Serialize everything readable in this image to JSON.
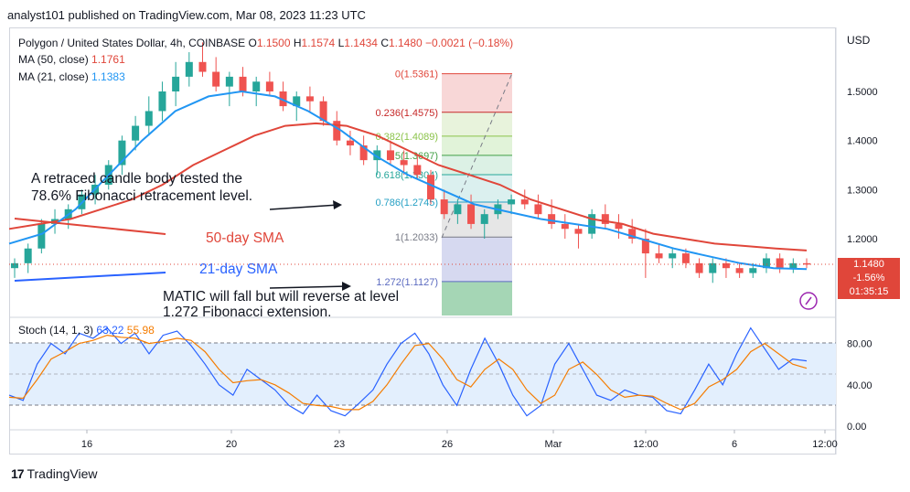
{
  "header": {
    "publisher": "analyst101 published on TradingView.com, Mar 08, 2023 11:23 UTC"
  },
  "legend": {
    "symbol": "Polygon / United States Dollar, 4h, COINBASE",
    "o_label": "O",
    "o_val": "1.1500",
    "h_label": "H",
    "h_val": "1.1574",
    "l_label": "L",
    "l_val": "1.1434",
    "c_label": "C",
    "c_val": "1.1480",
    "change": "−0.0021 (−0.18%)",
    "ma50_label": "MA (50, close)",
    "ma50_val": "1.1761",
    "ma21_label": "MA (21, close)",
    "ma21_val": "1.1383"
  },
  "price_axis": {
    "currency": "USD",
    "ticks": [
      "1.5000",
      "1.4000",
      "1.3000",
      "1.2000"
    ],
    "tick_values": [
      1.5,
      1.4,
      1.3,
      1.2
    ],
    "last_price": "1.1480",
    "last_change": "-1.56%",
    "countdown": "01:35:15"
  },
  "stoch": {
    "label": "Stoch (14, 1, 3)",
    "k_val": "63.22",
    "d_val": "55.98",
    "ticks": [
      "80.00",
      "40.00",
      "0.00"
    ],
    "tick_values": [
      80,
      40,
      0
    ]
  },
  "time_axis": {
    "labels": [
      "16",
      "20",
      "23",
      "26",
      "Mar",
      "12:00",
      "6",
      "12:00"
    ]
  },
  "fib": {
    "levels": [
      {
        "label": "0(1.5361)",
        "value": 1.5361,
        "color": "#e0463a"
      },
      {
        "label": "0.236(1.4575)",
        "value": 1.4575,
        "color": "#c62828"
      },
      {
        "label": "0.382(1.4089)",
        "value": 1.4089,
        "color": "#8bc34a"
      },
      {
        "label": "0.5(1.3697)",
        "value": 1.3697,
        "color": "#43a047"
      },
      {
        "label": "0.618(1.3304)",
        "value": 1.3304,
        "color": "#26a69a"
      },
      {
        "label": "0.786(1.2745)",
        "value": 1.2745,
        "color": "#26a0c4"
      },
      {
        "label": "1(1.2033)",
        "value": 1.2033,
        "color": "#787b86"
      },
      {
        "label": "1.272(1.1127)",
        "value": 1.1127,
        "color": "#5c6bc0"
      }
    ],
    "extension_bottom_value": 1.0
  },
  "annotations": {
    "retrace_line1": "A retraced candle body tested the",
    "retrace_line2": "78.6% Fibonacci retracement level.",
    "sma50": "50-day SMA",
    "sma21": "21-day SMA",
    "matic_line1": "MATIC  will fall but will reverse at level",
    "matic_line2": "1.272 Fibonacci extension."
  },
  "colors": {
    "up": "#26a69a",
    "down": "#ef5350",
    "ma50": "#e0463a",
    "ma21": "#2196f3",
    "stoch_k": "#2962ff",
    "stoch_d": "#f57c00",
    "stoch_band": "#e3effd"
  },
  "footer": {
    "brand": "TradingView"
  },
  "chart_data": {
    "type": "candlestick",
    "title": "Polygon / United States Dollar, 4h, COINBASE",
    "ylim": [
      1.06,
      1.62
    ],
    "candles": [
      [
        1.14,
        1.16,
        1.12,
        1.15
      ],
      [
        1.15,
        1.19,
        1.13,
        1.18
      ],
      [
        1.18,
        1.24,
        1.17,
        1.23
      ],
      [
        1.23,
        1.26,
        1.21,
        1.24
      ],
      [
        1.24,
        1.27,
        1.22,
        1.26
      ],
      [
        1.26,
        1.3,
        1.25,
        1.29
      ],
      [
        1.29,
        1.33,
        1.27,
        1.31
      ],
      [
        1.31,
        1.36,
        1.3,
        1.35
      ],
      [
        1.35,
        1.41,
        1.33,
        1.4
      ],
      [
        1.4,
        1.45,
        1.38,
        1.43
      ],
      [
        1.43,
        1.49,
        1.41,
        1.46
      ],
      [
        1.46,
        1.52,
        1.44,
        1.5
      ],
      [
        1.5,
        1.56,
        1.47,
        1.53
      ],
      [
        1.53,
        1.58,
        1.51,
        1.56
      ],
      [
        1.56,
        1.6,
        1.53,
        1.54
      ],
      [
        1.54,
        1.57,
        1.5,
        1.51
      ],
      [
        1.51,
        1.54,
        1.47,
        1.53
      ],
      [
        1.53,
        1.55,
        1.49,
        1.5
      ],
      [
        1.5,
        1.53,
        1.47,
        1.52
      ],
      [
        1.52,
        1.54,
        1.49,
        1.5
      ],
      [
        1.5,
        1.52,
        1.46,
        1.47
      ],
      [
        1.47,
        1.5,
        1.44,
        1.49
      ],
      [
        1.49,
        1.51,
        1.46,
        1.48
      ],
      [
        1.48,
        1.49,
        1.43,
        1.44
      ],
      [
        1.44,
        1.46,
        1.39,
        1.4
      ],
      [
        1.4,
        1.42,
        1.37,
        1.39
      ],
      [
        1.39,
        1.41,
        1.35,
        1.36
      ],
      [
        1.36,
        1.39,
        1.33,
        1.38
      ],
      [
        1.38,
        1.4,
        1.35,
        1.36
      ],
      [
        1.36,
        1.38,
        1.33,
        1.35
      ],
      [
        1.35,
        1.37,
        1.32,
        1.33
      ],
      [
        1.33,
        1.34,
        1.27,
        1.28
      ],
      [
        1.28,
        1.3,
        1.24,
        1.25
      ],
      [
        1.25,
        1.28,
        1.23,
        1.27
      ],
      [
        1.27,
        1.29,
        1.22,
        1.23
      ],
      [
        1.23,
        1.26,
        1.2,
        1.25
      ],
      [
        1.25,
        1.28,
        1.24,
        1.27
      ],
      [
        1.27,
        1.29,
        1.25,
        1.28
      ],
      [
        1.28,
        1.3,
        1.26,
        1.27
      ],
      [
        1.27,
        1.29,
        1.24,
        1.25
      ],
      [
        1.25,
        1.28,
        1.22,
        1.23
      ],
      [
        1.23,
        1.25,
        1.2,
        1.22
      ],
      [
        1.22,
        1.23,
        1.18,
        1.21
      ],
      [
        1.21,
        1.26,
        1.2,
        1.25
      ],
      [
        1.25,
        1.27,
        1.22,
        1.23
      ],
      [
        1.23,
        1.25,
        1.2,
        1.22
      ],
      [
        1.22,
        1.24,
        1.19,
        1.2
      ],
      [
        1.2,
        1.22,
        1.12,
        1.17
      ],
      [
        1.17,
        1.19,
        1.15,
        1.16
      ],
      [
        1.16,
        1.18,
        1.14,
        1.17
      ],
      [
        1.17,
        1.18,
        1.14,
        1.15
      ],
      [
        1.15,
        1.16,
        1.12,
        1.13
      ],
      [
        1.13,
        1.16,
        1.11,
        1.15
      ],
      [
        1.15,
        1.16,
        1.12,
        1.14
      ],
      [
        1.14,
        1.15,
        1.12,
        1.13
      ],
      [
        1.13,
        1.15,
        1.12,
        1.14
      ],
      [
        1.14,
        1.17,
        1.13,
        1.16
      ],
      [
        1.16,
        1.17,
        1.13,
        1.14
      ],
      [
        1.14,
        1.16,
        1.13,
        1.15
      ],
      [
        1.15,
        1.16,
        1.14,
        1.148
      ]
    ],
    "ma50": [
      1.22,
      1.23,
      1.24,
      1.26,
      1.28,
      1.31,
      1.35,
      1.38,
      1.41,
      1.43,
      1.435,
      1.43,
      1.41,
      1.38,
      1.35,
      1.33,
      1.31,
      1.28,
      1.26,
      1.24,
      1.23,
      1.21,
      1.2,
      1.19,
      1.185,
      1.18,
      1.176
    ],
    "ma21": [
      1.19,
      1.21,
      1.26,
      1.33,
      1.4,
      1.46,
      1.49,
      1.5,
      1.49,
      1.46,
      1.42,
      1.37,
      1.33,
      1.3,
      1.27,
      1.255,
      1.24,
      1.23,
      1.22,
      1.2,
      1.18,
      1.165,
      1.15,
      1.14,
      1.138
    ],
    "stoch_k": [
      30,
      25,
      60,
      80,
      70,
      90,
      85,
      95,
      80,
      90,
      70,
      88,
      92,
      78,
      60,
      40,
      30,
      55,
      45,
      35,
      20,
      12,
      30,
      15,
      10,
      22,
      35,
      60,
      80,
      90,
      70,
      40,
      20,
      55,
      85,
      60,
      30,
      10,
      20,
      60,
      80,
      55,
      30,
      25,
      35,
      30,
      28,
      15,
      12,
      35,
      60,
      40,
      70,
      95,
      75,
      55,
      65,
      63.22
    ],
    "stoch_d": [
      28,
      27,
      45,
      65,
      72,
      80,
      83,
      88,
      86,
      85,
      80,
      82,
      85,
      83,
      72,
      55,
      42,
      44,
      45,
      40,
      32,
      22,
      20,
      19,
      16,
      16,
      24,
      40,
      60,
      78,
      80,
      65,
      45,
      38,
      55,
      65,
      55,
      35,
      22,
      30,
      55,
      62,
      50,
      35,
      28,
      30,
      29,
      22,
      16,
      22,
      38,
      45,
      55,
      72,
      80,
      70,
      60,
      55.98
    ],
    "fib_levels": [
      1.5361,
      1.4575,
      1.4089,
      1.3697,
      1.3304,
      1.2745,
      1.2033,
      1.1127
    ]
  }
}
